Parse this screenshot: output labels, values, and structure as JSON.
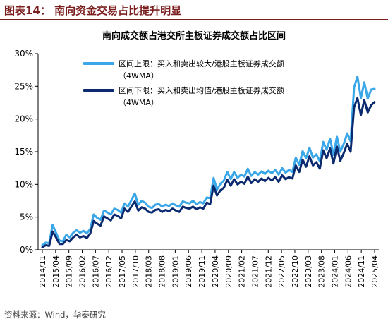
{
  "header": {
    "figure_title": "图表14：  南向资金交易占比提升明显"
  },
  "source": "资料来源：Wind，华泰研究",
  "colors": {
    "upper": "#3aa7e8",
    "lower": "#0b2a6f",
    "accent": "#7b1e1e"
  },
  "chart_data": {
    "type": "line",
    "title": "南向成交额占港交所主板证券成交额占比区间",
    "ylim": [
      0,
      30
    ],
    "yticks": [
      "0%",
      "5%",
      "10%",
      "15%",
      "20%",
      "25%",
      "30%"
    ],
    "xticks": [
      "2014/11",
      "2015/04",
      "2015/09",
      "2016/02",
      "2016/07",
      "2016/12",
      "2017/05",
      "2017/10",
      "2018/03",
      "2018/08",
      "2019/01",
      "2019/06",
      "2019/11",
      "2020/04",
      "2020/09",
      "2021/02",
      "2021/07",
      "2021/12",
      "2022/05",
      "2022/10",
      "2023/03",
      "2023/08",
      "2024/01",
      "2024/06",
      "2024/11",
      "2025/04"
    ],
    "grid": false,
    "legend": "top-left",
    "series": [
      {
        "name": "区间上限：买入和卖出较大/港股主板证券成交额（4WMA）",
        "key": "upper",
        "values": [
          0.7,
          1.1,
          1.0,
          3.8,
          2.6,
          1.4,
          1.3,
          2.3,
          1.9,
          2.6,
          3.0,
          2.6,
          2.9,
          2.5,
          3.2,
          5.4,
          4.9,
          4.6,
          6.0,
          5.7,
          5.4,
          6.3,
          6.1,
          5.7,
          7.1,
          6.6,
          7.6,
          8.6,
          6.9,
          7.5,
          7.2,
          6.6,
          6.4,
          6.9,
          7.0,
          6.6,
          6.9,
          6.7,
          7.1,
          6.8,
          6.6,
          7.4,
          7.2,
          7.1,
          7.5,
          7.0,
          7.3,
          7.1,
          8.0,
          7.9,
          11.0,
          9.2,
          10.1,
          10.6,
          11.9,
          10.8,
          11.9,
          11.0,
          11.5,
          11.2,
          12.4,
          11.3,
          11.9,
          11.5,
          12.0,
          11.6,
          12.1,
          11.7,
          12.2,
          11.5,
          12.5,
          11.8,
          12.2,
          11.9,
          14.1,
          13.0,
          15.1,
          14.0,
          15.6,
          14.1,
          14.6,
          13.5,
          16.5,
          15.3,
          17.0,
          14.5,
          17.3,
          15.0,
          16.2,
          17.8,
          16.6,
          24.8,
          26.5,
          23.2,
          25.6,
          23.1,
          24.5,
          24.6
        ]
      },
      {
        "name": "区间下限：买入和卖出均值/港股主板证券成交额（4WMA）",
        "key": "lower",
        "values": [
          0.4,
          0.7,
          0.6,
          2.8,
          1.9,
          0.9,
          0.9,
          1.5,
          1.3,
          1.9,
          2.3,
          1.9,
          2.1,
          1.8,
          2.5,
          4.4,
          4.0,
          3.7,
          5.1,
          4.8,
          4.5,
          5.4,
          5.2,
          4.8,
          6.3,
          5.8,
          6.6,
          7.4,
          6.0,
          6.5,
          6.3,
          5.8,
          5.7,
          6.1,
          6.2,
          5.8,
          6.1,
          5.9,
          6.3,
          6.0,
          5.8,
          6.6,
          6.4,
          6.3,
          6.6,
          6.2,
          6.5,
          6.3,
          7.2,
          7.0,
          9.8,
          8.3,
          9.1,
          9.5,
          10.7,
          9.8,
          10.8,
          10.0,
          10.4,
          10.1,
          11.2,
          10.2,
          10.8,
          10.4,
          10.9,
          10.5,
          11.0,
          10.6,
          11.1,
          10.4,
          11.4,
          10.8,
          11.1,
          10.9,
          12.9,
          11.9,
          13.8,
          12.7,
          14.3,
          12.9,
          13.4,
          12.4,
          15.2,
          14.0,
          15.5,
          13.2,
          15.8,
          13.6,
          14.8,
          16.2,
          15.0,
          21.8,
          23.2,
          20.6,
          22.9,
          21.0,
          22.1,
          22.6
        ]
      }
    ]
  }
}
